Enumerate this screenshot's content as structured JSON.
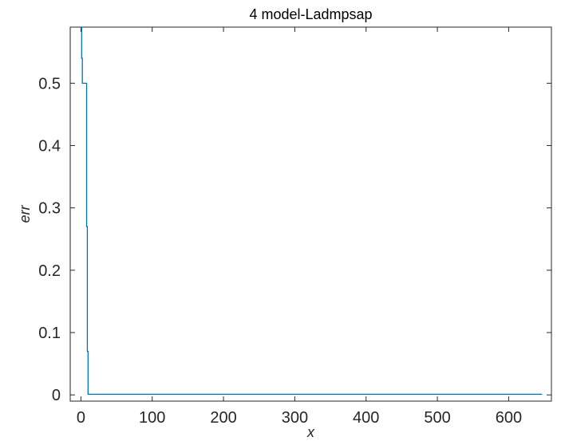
{
  "chart_data": {
    "type": "line",
    "title": "4 model-Ladmpsap",
    "xlabel": "x",
    "ylabel": "err",
    "xlim": [
      -15,
      660
    ],
    "ylim": [
      -0.01,
      0.59
    ],
    "xticks": [
      0,
      100,
      200,
      300,
      400,
      500,
      600
    ],
    "yticks": [
      0,
      0.1,
      0.2,
      0.3,
      0.4,
      0.5
    ],
    "xtick_labels": [
      "0",
      "100",
      "200",
      "300",
      "400",
      "500",
      "600"
    ],
    "ytick_labels": [
      "0",
      "0.1",
      "0.2",
      "0.3",
      "0.4",
      "0.5"
    ],
    "grid": false,
    "series": [
      {
        "color": "#0072bd",
        "step": true,
        "x": [
          0,
          1,
          2,
          3,
          4,
          5,
          6,
          7,
          8,
          9,
          10,
          647
        ],
        "y": [
          0.59,
          0.54,
          0.5,
          0.5,
          0.5,
          0.5,
          0.5,
          0.5,
          0.27,
          0.07,
          0.001,
          0.001
        ]
      }
    ]
  }
}
